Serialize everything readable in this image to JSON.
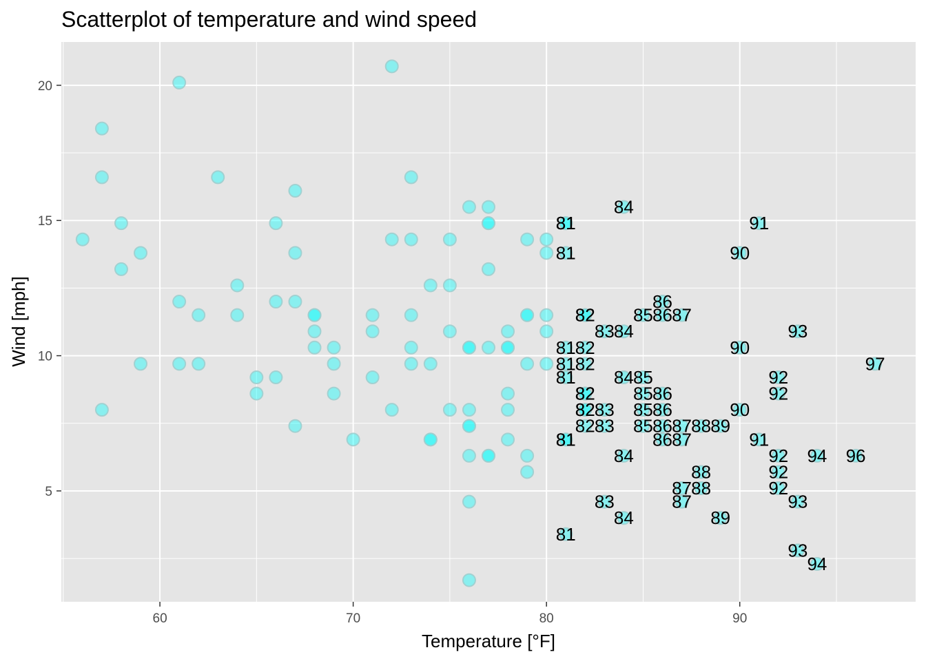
{
  "chart_data": {
    "type": "scatter",
    "title": "Scatterplot of temperature and wind speed",
    "xlabel": "Temperature [°F]",
    "ylabel": "Wind [mph]",
    "xlim": [
      54.9,
      99.1
    ],
    "ylim": [
      0.9,
      21.6
    ],
    "x_ticks": [
      60,
      70,
      80,
      90
    ],
    "y_ticks": [
      5,
      10,
      15,
      20
    ],
    "grid": true,
    "label_rule": "temperature > 80",
    "colors": {
      "panel_background": "#e5e5e5",
      "grid": "#ffffff",
      "point_fill": "#00ffff",
      "point_stroke": "#9ecece",
      "label": "#000000",
      "tick": "#4d4d4d"
    },
    "points": [
      [
        56,
        14.3
      ],
      [
        57,
        18.4
      ],
      [
        57,
        16.6
      ],
      [
        57,
        8.0
      ],
      [
        58,
        14.9
      ],
      [
        58,
        13.2
      ],
      [
        59,
        13.8
      ],
      [
        59,
        9.7
      ],
      [
        61,
        20.1
      ],
      [
        61,
        12.0
      ],
      [
        61,
        9.7
      ],
      [
        62,
        11.5
      ],
      [
        62,
        9.7
      ],
      [
        63,
        16.6
      ],
      [
        64,
        12.6
      ],
      [
        64,
        11.5
      ],
      [
        65,
        9.2
      ],
      [
        65,
        8.6
      ],
      [
        66,
        14.9
      ],
      [
        66,
        12.0
      ],
      [
        66,
        9.2
      ],
      [
        67,
        16.1
      ],
      [
        67,
        13.8
      ],
      [
        67,
        12.0
      ],
      [
        67,
        7.4
      ],
      [
        68,
        11.5
      ],
      [
        68,
        11.5
      ],
      [
        68,
        10.9
      ],
      [
        68,
        10.3
      ],
      [
        69,
        10.3
      ],
      [
        69,
        9.7
      ],
      [
        69,
        8.6
      ],
      [
        70,
        6.9
      ],
      [
        71,
        11.5
      ],
      [
        71,
        10.9
      ],
      [
        71,
        9.2
      ],
      [
        72,
        20.7
      ],
      [
        72,
        14.3
      ],
      [
        72,
        8.0
      ],
      [
        73,
        16.6
      ],
      [
        73,
        14.3
      ],
      [
        73,
        11.5
      ],
      [
        73,
        10.3
      ],
      [
        73,
        9.7
      ],
      [
        74,
        12.6
      ],
      [
        74,
        9.7
      ],
      [
        74,
        6.9
      ],
      [
        74,
        6.9
      ],
      [
        75,
        14.3
      ],
      [
        75,
        12.6
      ],
      [
        75,
        10.9
      ],
      [
        75,
        8.0
      ],
      [
        76,
        15.5
      ],
      [
        76,
        10.3
      ],
      [
        76,
        10.3
      ],
      [
        76,
        8.0
      ],
      [
        76,
        7.4
      ],
      [
        76,
        7.4
      ],
      [
        76,
        6.3
      ],
      [
        76,
        4.6
      ],
      [
        76,
        1.7
      ],
      [
        77,
        15.5
      ],
      [
        77,
        14.9
      ],
      [
        77,
        14.9
      ],
      [
        77,
        13.2
      ],
      [
        77,
        10.3
      ],
      [
        77,
        6.3
      ],
      [
        77,
        6.3
      ],
      [
        78,
        10.9
      ],
      [
        78,
        10.3
      ],
      [
        78,
        10.3
      ],
      [
        78,
        8.6
      ],
      [
        78,
        8.0
      ],
      [
        78,
        6.9
      ],
      [
        79,
        14.3
      ],
      [
        79,
        11.5
      ],
      [
        79,
        11.5
      ],
      [
        79,
        9.7
      ],
      [
        79,
        6.3
      ],
      [
        79,
        5.7
      ],
      [
        80,
        14.3
      ],
      [
        80,
        13.8
      ],
      [
        80,
        11.5
      ],
      [
        80,
        10.9
      ],
      [
        80,
        9.7
      ],
      [
        81,
        14.9
      ],
      [
        81,
        14.9
      ],
      [
        81,
        13.8
      ],
      [
        81,
        10.3
      ],
      [
        81,
        9.7
      ],
      [
        81,
        9.2
      ],
      [
        81,
        6.9
      ],
      [
        81,
        6.9
      ],
      [
        81,
        3.4
      ],
      [
        82,
        11.5
      ],
      [
        82,
        11.5
      ],
      [
        82,
        10.3
      ],
      [
        82,
        9.7
      ],
      [
        82,
        8.6
      ],
      [
        82,
        8.6
      ],
      [
        82,
        8.0
      ],
      [
        82,
        8.0
      ],
      [
        82,
        7.4
      ],
      [
        83,
        10.9
      ],
      [
        83,
        8.0
      ],
      [
        83,
        7.4
      ],
      [
        83,
        4.6
      ],
      [
        84,
        15.5
      ],
      [
        84,
        10.9
      ],
      [
        84,
        9.2
      ],
      [
        84,
        6.3
      ],
      [
        84,
        4.0
      ],
      [
        85,
        11.5
      ],
      [
        85,
        9.2
      ],
      [
        85,
        8.6
      ],
      [
        85,
        8.0
      ],
      [
        85,
        7.4
      ],
      [
        86,
        12.0
      ],
      [
        86,
        11.5
      ],
      [
        86,
        8.6
      ],
      [
        86,
        8.0
      ],
      [
        86,
        7.4
      ],
      [
        86,
        6.9
      ],
      [
        87,
        11.5
      ],
      [
        87,
        7.4
      ],
      [
        87,
        6.9
      ],
      [
        87,
        5.1
      ],
      [
        87,
        4.6
      ],
      [
        88,
        7.4
      ],
      [
        88,
        5.7
      ],
      [
        88,
        5.1
      ],
      [
        89,
        7.4
      ],
      [
        89,
        4.0
      ],
      [
        90,
        13.8
      ],
      [
        90,
        10.3
      ],
      [
        90,
        8.0
      ],
      [
        91,
        14.9
      ],
      [
        91,
        6.9
      ],
      [
        92,
        9.2
      ],
      [
        92,
        8.6
      ],
      [
        92,
        6.3
      ],
      [
        92,
        5.7
      ],
      [
        92,
        5.1
      ],
      [
        93,
        10.9
      ],
      [
        93,
        4.6
      ],
      [
        93,
        2.8
      ],
      [
        94,
        6.3
      ],
      [
        94,
        2.3
      ],
      [
        96,
        6.3
      ],
      [
        97,
        9.7
      ]
    ]
  }
}
